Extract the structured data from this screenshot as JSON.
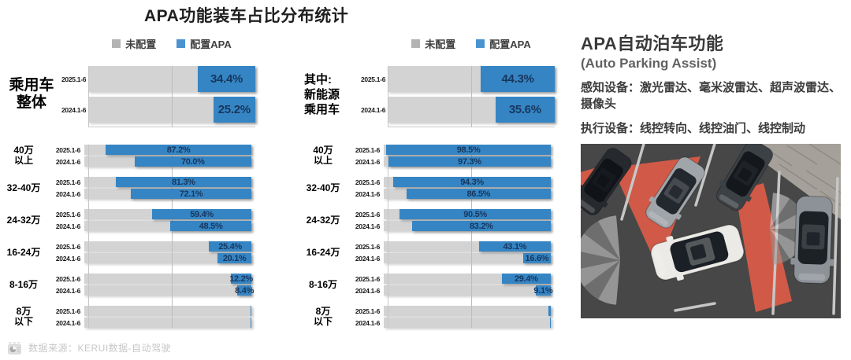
{
  "title": "APA功能装车占比分布统计",
  "legend": {
    "not_configured": "未配置",
    "configured": "配置APA"
  },
  "colors": {
    "bar_not_configured": "#d3d3d3",
    "bar_configured": "#3585c4",
    "value_text": "#17365d",
    "legend_gray_swatch": "#b3b3b3",
    "legend_blue_swatch": "#4a93d0",
    "red_zone": "#d85c47"
  },
  "right_panel": {
    "title": "APA自动泊车功能",
    "subtitle": "(Auto Parking Assist)",
    "line_sensors": "感知设备：激光雷达、毫米波雷达、超声波雷达、摄像头",
    "line_actuators": "执行设备：线控转向、线控油门、线控制动"
  },
  "source": {
    "text": "数据来源：KERUI数据-自动驾驶"
  },
  "chart_data": [
    {
      "type": "bar",
      "orientation": "horizontal-stacked",
      "title": "乘用车整体",
      "group_label_lines": [
        "乘用车",
        "整体"
      ],
      "periods": [
        "2025.1-6",
        "2024.1-6"
      ],
      "overall": {
        "values": [
          34.4,
          25.2
        ],
        "labels": [
          "34.4%",
          "25.2%"
        ]
      },
      "segments": [
        {
          "label_lines": [
            "40万",
            "以上"
          ],
          "values": [
            87.2,
            70.0
          ],
          "labels": [
            "87.2%",
            "70.0%"
          ]
        },
        {
          "label_lines": [
            "32-40万"
          ],
          "values": [
            81.3,
            72.1
          ],
          "labels": [
            "81.3%",
            "72.1%"
          ]
        },
        {
          "label_lines": [
            "24-32万"
          ],
          "values": [
            59.4,
            48.5
          ],
          "labels": [
            "59.4%",
            "48.5%"
          ]
        },
        {
          "label_lines": [
            "16-24万"
          ],
          "values": [
            25.4,
            20.1
          ],
          "labels": [
            "25.4%",
            "20.1%"
          ]
        },
        {
          "label_lines": [
            "8-16万"
          ],
          "values": [
            12.2,
            8.4
          ],
          "labels": [
            "12.2%",
            "8.4%"
          ]
        },
        {
          "label_lines": [
            "8万",
            "以下"
          ],
          "values": [
            0.7,
            0.7
          ],
          "labels": [
            "",
            ""
          ]
        }
      ],
      "xlim": [
        0,
        100
      ],
      "gridline_at": 50,
      "legend_position": "top"
    },
    {
      "type": "bar",
      "orientation": "horizontal-stacked",
      "title": "其中:新能源乘用车",
      "group_label_lines": [
        "其中:",
        "新能源",
        "乘用车"
      ],
      "periods": [
        "2025.1-6",
        "2024.1-6"
      ],
      "overall": {
        "values": [
          44.3,
          35.6
        ],
        "labels": [
          "44.3%",
          "35.6%"
        ]
      },
      "segments": [
        {
          "label_lines": [
            "40万",
            "以上"
          ],
          "values": [
            98.5,
            97.3
          ],
          "labels": [
            "98.5%",
            "97.3%"
          ]
        },
        {
          "label_lines": [
            "32-40万"
          ],
          "values": [
            94.3,
            86.5
          ],
          "labels": [
            "94.3%",
            "86.5%"
          ]
        },
        {
          "label_lines": [
            "24-32万"
          ],
          "values": [
            90.5,
            83.2
          ],
          "labels": [
            "90.5%",
            "83.2%"
          ]
        },
        {
          "label_lines": [
            "16-24万"
          ],
          "values": [
            43.1,
            16.6
          ],
          "labels": [
            "43.1%",
            "16.6%"
          ]
        },
        {
          "label_lines": [
            "8-16万"
          ],
          "values": [
            29.4,
            9.1
          ],
          "labels": [
            "29.4%",
            "9.1%"
          ]
        },
        {
          "label_lines": [
            "8万",
            "以下"
          ],
          "values": [
            1.5,
            0.5
          ],
          "labels": [
            "",
            ""
          ]
        }
      ],
      "xlim": [
        0,
        100
      ],
      "gridline_at": 50,
      "legend_position": "top"
    }
  ]
}
